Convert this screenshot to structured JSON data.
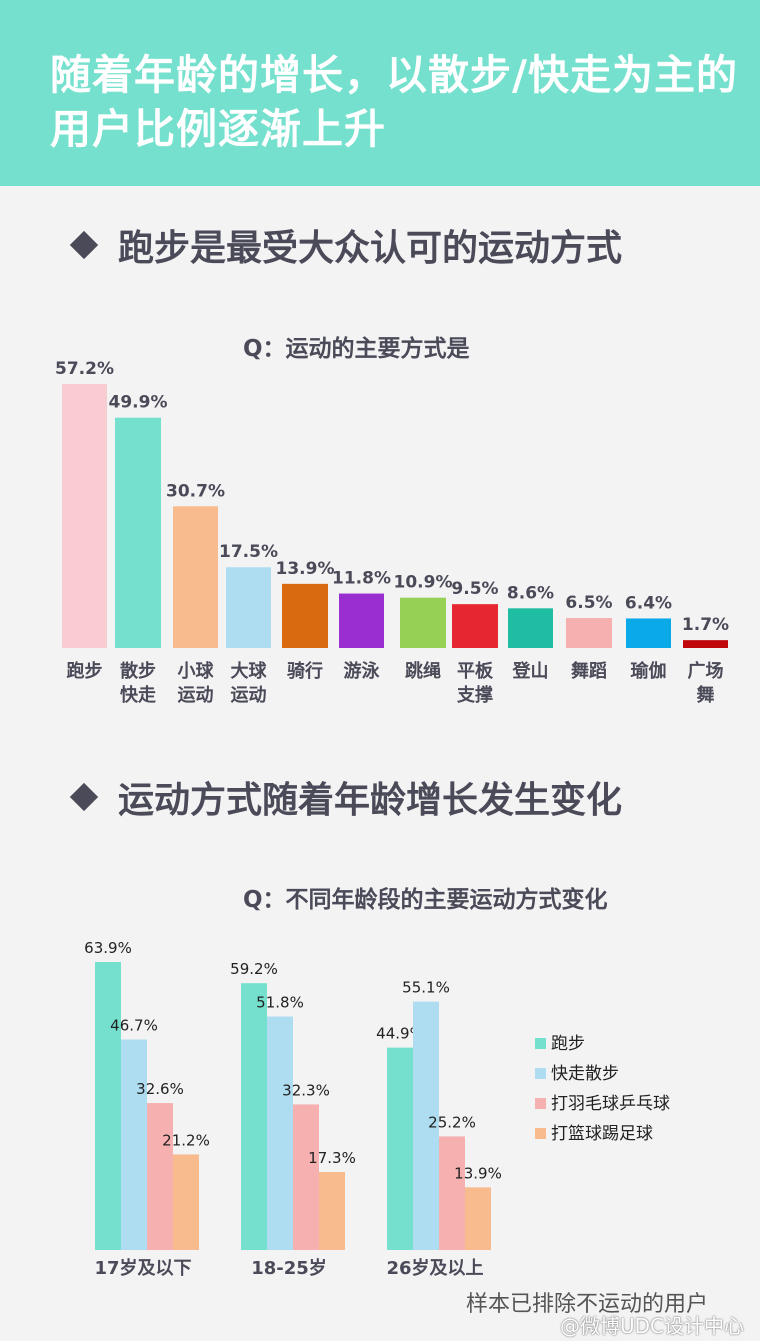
{
  "banner": {
    "title": "随着年龄的增长，以散步/快走为主的用户比例逐渐上升"
  },
  "section1": {
    "heading": "跑步是最受大众认可的运动方式",
    "question": "Q：运动的主要方式是"
  },
  "section2": {
    "heading": "运动方式随着年龄增长发生变化",
    "question": "Q：不同年龄段的主要运动方式变化"
  },
  "footnote": "样本已排除不运动的用户",
  "watermark": "@微博UDC设计中心",
  "chart_data": [
    {
      "type": "bar",
      "title": "Q：运动的主要方式是",
      "categories": [
        "跑步",
        "散步快走",
        "小球运动",
        "大球运动",
        "骑行",
        "游泳",
        "跳绳",
        "平板支撑",
        "登山",
        "舞蹈",
        "瑜伽",
        "广场舞"
      ],
      "category_lines": [
        [
          "跑步"
        ],
        [
          "散步",
          "快走"
        ],
        [
          "小球",
          "运动"
        ],
        [
          "大球",
          "运动"
        ],
        [
          "骑行"
        ],
        [
          "游泳"
        ],
        [
          "跳绳"
        ],
        [
          "平板",
          "支撑"
        ],
        [
          "登山"
        ],
        [
          "舞蹈"
        ],
        [
          "瑜伽"
        ],
        [
          "广场",
          "舞"
        ]
      ],
      "values": [
        57.2,
        49.9,
        30.7,
        17.5,
        13.9,
        11.8,
        10.9,
        9.5,
        8.6,
        6.5,
        6.4,
        1.7
      ],
      "labels": [
        "57.2%",
        "49.9%",
        "30.7%",
        "17.5%",
        "13.9%",
        "11.8%",
        "10.9%",
        "9.5%",
        "8.6%",
        "6.5%",
        "6.4%",
        "1.7%"
      ],
      "colors": [
        "#f8ccd0",
        "#75e0cd",
        "#f7bb8e",
        "#aedcf0",
        "#d96a10",
        "#9a2ed0",
        "#96d156",
        "#e62630",
        "#1fbea2",
        "#f6b0b0",
        "#0aa9e8",
        "#c0080c"
      ],
      "ylim": [
        0,
        60
      ]
    },
    {
      "type": "bar",
      "title": "Q：不同年龄段的主要运动方式变化",
      "categories": [
        "17岁及以下",
        "18-25岁",
        "26岁及以上"
      ],
      "series": [
        {
          "name": "跑步",
          "values": [
            63.9,
            59.2,
            44.9
          ],
          "labels": [
            "63.9%",
            "59.2%",
            "44.9%"
          ],
          "color": "#75e0cd"
        },
        {
          "name": "快走散步",
          "values": [
            46.7,
            51.8,
            55.1
          ],
          "labels": [
            "46.7%",
            "51.8%",
            "55.1%"
          ],
          "color": "#aedcf0"
        },
        {
          "name": "打羽毛球乒乓球",
          "values": [
            32.6,
            32.3,
            25.2
          ],
          "labels": [
            "32.6%",
            "32.3%",
            "25.2%"
          ],
          "color": "#f6b0b0"
        },
        {
          "name": "打篮球踢足球",
          "values": [
            21.2,
            17.3,
            13.9
          ],
          "labels": [
            "21.2%",
            "17.3%",
            "13.9%"
          ],
          "color": "#f7bb8e"
        }
      ],
      "legend": "right",
      "ylim": [
        0,
        70
      ]
    }
  ]
}
